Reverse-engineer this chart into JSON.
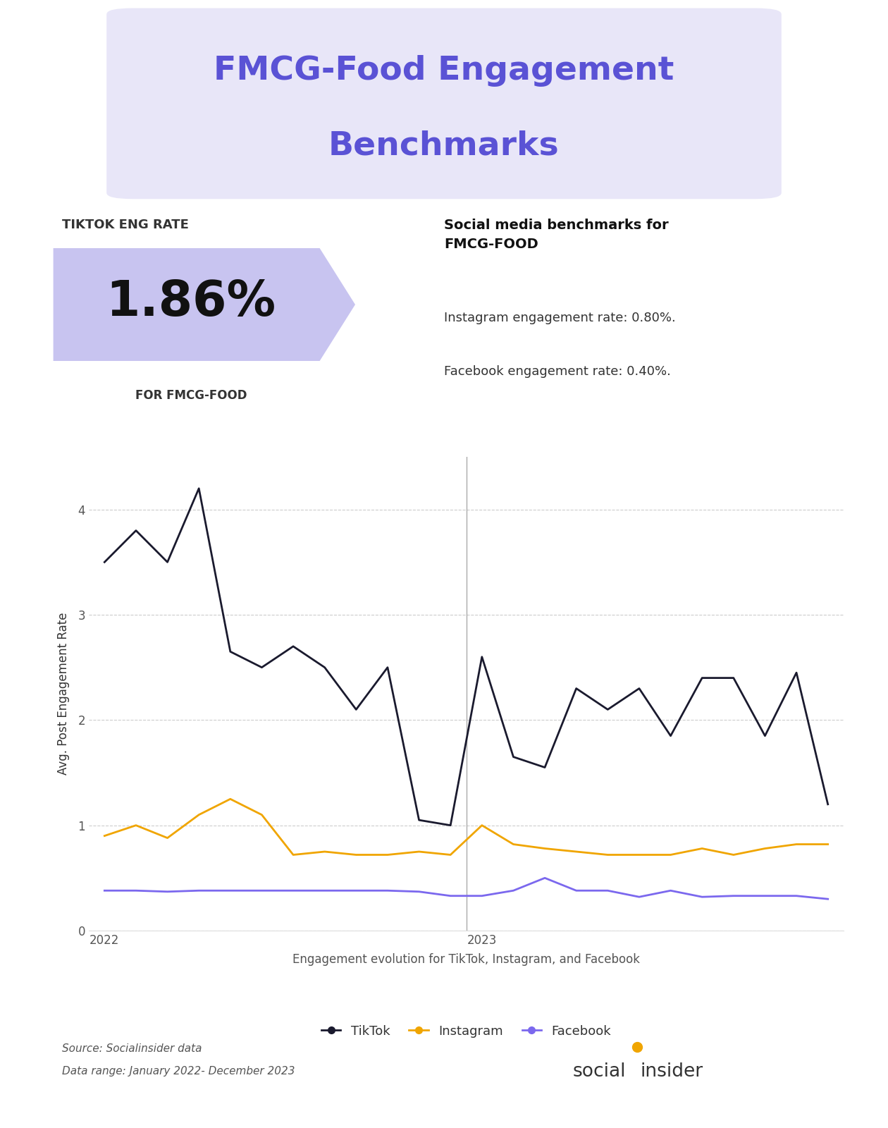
{
  "title_line1": "FMCG-Food Engagement",
  "title_line2": "Benchmarks",
  "title_color": "#5a52d5",
  "title_bg_color": "#e8e6f8",
  "tiktok_rate": "1.86%",
  "tiktok_label_top": "TIKTOK ENG RATE",
  "tiktok_label_bottom": "FOR FMCG-FOOD",
  "tiktok_bg_color": "#c8c4f0",
  "benchmark_title": "Social media benchmarks for\nFMCG-FOOD",
  "benchmark_line1": "Instagram engagement rate: 0.80%.",
  "benchmark_line2": "Facebook engagement rate: 0.40%.",
  "tiktok_data": [
    3.5,
    3.8,
    3.5,
    4.2,
    2.65,
    2.5,
    2.7,
    2.5,
    2.1,
    2.5,
    1.05,
    1.0,
    2.6,
    1.65,
    1.55,
    2.3,
    2.1,
    2.3,
    1.85,
    2.4,
    2.4,
    1.85,
    2.45,
    1.2
  ],
  "instagram_data": [
    0.9,
    1.0,
    0.88,
    1.1,
    1.25,
    1.1,
    0.72,
    0.75,
    0.72,
    0.72,
    0.75,
    0.72,
    1.0,
    0.82,
    0.78,
    0.75,
    0.72,
    0.72,
    0.72,
    0.78,
    0.72,
    0.78,
    0.82,
    0.82
  ],
  "facebook_data": [
    0.38,
    0.38,
    0.37,
    0.38,
    0.38,
    0.38,
    0.38,
    0.38,
    0.38,
    0.38,
    0.37,
    0.33,
    0.33,
    0.38,
    0.5,
    0.38,
    0.38,
    0.32,
    0.38,
    0.32,
    0.33,
    0.33,
    0.33,
    0.3
  ],
  "tiktok_color": "#1a1a2e",
  "instagram_color": "#f0a500",
  "facebook_color": "#7b68ee",
  "bg_color": "#ffffff",
  "grid_color": "#cccccc",
  "ylabel": "Avg. Post Engagement Rate",
  "xlabel": "Engagement evolution for TikTok, Instagram, and Facebook",
  "source_text1": "Source: Socialinsider data",
  "source_text2": "Data range: January 2022- December 2023",
  "yticks": [
    0,
    1,
    2,
    3,
    4
  ],
  "year_labels": [
    "2022",
    "2023"
  ],
  "vline_position": 12,
  "vline_color": "#aaaaaa"
}
